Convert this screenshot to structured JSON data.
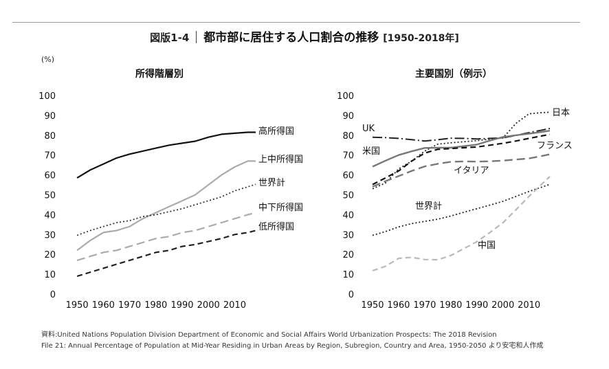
{
  "figure": {
    "number": "図版1-4",
    "title": "都市部に居住する人口割合の推移",
    "period": "[1950-2018年]"
  },
  "source": {
    "line1": "資料:United Nations Population Division Department of Economic and Social Affairs World Urbanization Prospects: The 2018 Revision",
    "line2": "File 21: Annual Percentage of Population at Mid-Year Residing in Urban Areas by Region, Subregion, Country and Area, 1950-2050 より安宅和人作成"
  },
  "chart_data": [
    {
      "type": "line",
      "title": "所得階層別",
      "ylabel": "(%)",
      "xlabel": "",
      "xlim": [
        1945,
        2018
      ],
      "ylim": [
        0,
        100
      ],
      "xticks": [
        1950,
        1960,
        1970,
        1980,
        1990,
        2000,
        2010
      ],
      "yticks": [
        0,
        10,
        20,
        30,
        40,
        50,
        60,
        70,
        80,
        90,
        100
      ],
      "grid": false,
      "legend": "direct labels at line ends",
      "series": [
        {
          "name": "高所得国",
          "color": "#111111",
          "dash": "solid",
          "width": 2.2,
          "x": [
            1950,
            1955,
            1960,
            1965,
            1970,
            1975,
            1980,
            1985,
            1990,
            1995,
            2000,
            2005,
            2010,
            2015,
            2018
          ],
          "y": [
            58.5,
            62.5,
            65.5,
            68.5,
            70.5,
            72,
            73.5,
            75,
            76,
            77,
            79,
            80.5,
            81,
            81.5,
            81.5
          ]
        },
        {
          "name": "上中所得国",
          "color": "#aaaaaa",
          "dash": "solid",
          "width": 2.2,
          "x": [
            1950,
            1955,
            1960,
            1965,
            1970,
            1975,
            1980,
            1985,
            1990,
            1995,
            2000,
            2005,
            2010,
            2015,
            2018
          ],
          "y": [
            22,
            27,
            31,
            32,
            34,
            38,
            41,
            44,
            47,
            50,
            55,
            60,
            64,
            67,
            67
          ]
        },
        {
          "name": "世界計",
          "color": "#333333",
          "dash": "2,3",
          "width": 1.8,
          "x": [
            1950,
            1955,
            1960,
            1965,
            1970,
            1975,
            1980,
            1985,
            1990,
            1995,
            2000,
            2005,
            2010,
            2015,
            2018
          ],
          "y": [
            29.6,
            32,
            34,
            36,
            37,
            39,
            40,
            41.5,
            43,
            45,
            47,
            49,
            52,
            54,
            55.3
          ]
        },
        {
          "name": "中下所得国",
          "color": "#aaaaaa",
          "dash": "12,6",
          "width": 2.2,
          "x": [
            1950,
            1955,
            1960,
            1965,
            1970,
            1975,
            1980,
            1985,
            1990,
            1995,
            2000,
            2005,
            2010,
            2015,
            2018
          ],
          "y": [
            17,
            19,
            21,
            22,
            24,
            26,
            28,
            29,
            31,
            32,
            34,
            36,
            38,
            40,
            41
          ]
        },
        {
          "name": "低所得国",
          "color": "#222222",
          "dash": "8,5",
          "width": 2.2,
          "x": [
            1950,
            1955,
            1960,
            1965,
            1970,
            1975,
            1980,
            1985,
            1990,
            1995,
            2000,
            2005,
            2010,
            2015,
            2018
          ],
          "y": [
            9,
            11,
            13,
            15,
            17,
            19,
            21,
            22,
            24,
            25,
            26.5,
            28,
            30,
            31,
            32
          ]
        }
      ]
    },
    {
      "type": "line",
      "title": "主要国別（例示）",
      "ylabel": "",
      "xlabel": "",
      "xlim": [
        1945,
        2018
      ],
      "ylim": [
        0,
        100
      ],
      "xticks": [
        1950,
        1960,
        1970,
        1980,
        1990,
        2000,
        2010
      ],
      "yticks": [
        0,
        10,
        20,
        30,
        40,
        50,
        60,
        70,
        80,
        90,
        100
      ],
      "grid": false,
      "legend": "direct labels at line ends",
      "series": [
        {
          "name": "日本",
          "color": "#222222",
          "dash": "2,3",
          "width": 1.8,
          "x": [
            1950,
            1955,
            1960,
            1965,
            1970,
            1975,
            1980,
            1985,
            1990,
            1995,
            2000,
            2005,
            2010,
            2015,
            2018
          ],
          "y": [
            53,
            56,
            63,
            67,
            72,
            75.5,
            76.2,
            76.7,
            77.3,
            78,
            78.6,
            86,
            90.8,
            91.4,
            91.6
          ]
        },
        {
          "name": "UK",
          "color": "#222222",
          "dash": "14,4,2,4",
          "width": 2,
          "x": [
            1950,
            1955,
            1960,
            1965,
            1970,
            1975,
            1980,
            1985,
            1990,
            1995,
            2000,
            2005,
            2010,
            2015,
            2018
          ],
          "y": [
            79,
            78.8,
            78.4,
            77.8,
            77.1,
            77.7,
            78.5,
            78.4,
            78.1,
            78.4,
            78.7,
            79.9,
            81.3,
            82.6,
            83.4
          ]
        },
        {
          "name": "米国",
          "color": "#777777",
          "dash": "solid",
          "width": 2.4,
          "x": [
            1950,
            1955,
            1960,
            1965,
            1970,
            1975,
            1980,
            1985,
            1990,
            1995,
            2000,
            2005,
            2010,
            2015,
            2018
          ],
          "y": [
            64.2,
            67.2,
            70,
            71.9,
            73.6,
            73.7,
            73.7,
            74.5,
            75.3,
            77.3,
            79.1,
            80,
            80.8,
            81.7,
            82.3
          ]
        },
        {
          "name": "フランス",
          "color": "#111111",
          "dash": "8,5",
          "width": 2.2,
          "x": [
            1950,
            1955,
            1960,
            1965,
            1970,
            1975,
            1980,
            1985,
            1990,
            1995,
            2000,
            2005,
            2010,
            2015,
            2018
          ],
          "y": [
            55.2,
            58.5,
            62,
            67,
            71,
            72.9,
            73.3,
            73.7,
            74.1,
            75,
            75.9,
            77.1,
            78.4,
            79.7,
            80.4
          ]
        },
        {
          "name": "イタリア",
          "color": "#777777",
          "dash": "12,6",
          "width": 2.4,
          "x": [
            1950,
            1955,
            1960,
            1965,
            1970,
            1975,
            1980,
            1985,
            1990,
            1995,
            2000,
            2005,
            2010,
            2015,
            2018
          ],
          "y": [
            54.1,
            56.9,
            59.4,
            62,
            64.3,
            65.6,
            66.6,
            66.8,
            66.7,
            66.9,
            67.2,
            67.8,
            68.3,
            69.6,
            70.4
          ]
        },
        {
          "name": "世界計",
          "color": "#222222",
          "dash": "2,3",
          "width": 1.8,
          "x": [
            1950,
            1955,
            1960,
            1965,
            1970,
            1975,
            1980,
            1985,
            1990,
            1995,
            2000,
            2005,
            2010,
            2015,
            2018
          ],
          "y": [
            29.6,
            31.5,
            33.8,
            35.5,
            36.6,
            37.7,
            39.3,
            41.2,
            43,
            44.8,
            46.7,
            49.2,
            51.7,
            53.9,
            55.3
          ]
        },
        {
          "name": "中国",
          "color": "#b8b8b8",
          "dash": "8,5",
          "width": 2.2,
          "x": [
            1950,
            1955,
            1960,
            1965,
            1970,
            1975,
            1980,
            1985,
            1990,
            1995,
            2000,
            2005,
            2010,
            2015,
            2018
          ],
          "y": [
            11.8,
            14,
            18,
            18.5,
            17.4,
            17.3,
            19.4,
            22.9,
            26.4,
            31,
            35.9,
            42.5,
            49.2,
            55.5,
            59.2
          ]
        }
      ]
    }
  ]
}
